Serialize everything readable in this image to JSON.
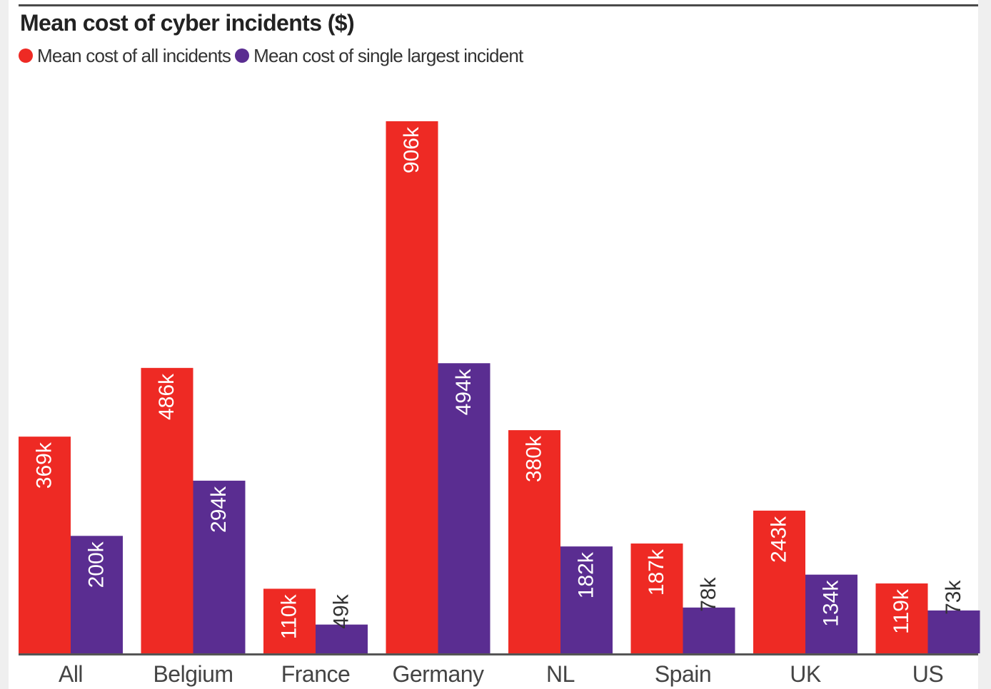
{
  "colors": {
    "all_incidents": "#ee2a24",
    "largest_incident": "#5a2d91",
    "axis": "#555555",
    "text_dark": "#333333"
  },
  "chart_data": {
    "type": "bar",
    "title": "Mean cost of cyber incidents ($)",
    "xlabel": "",
    "ylabel": "",
    "ylim": [
      0,
      906
    ],
    "grid": false,
    "legend_position": "top-left",
    "categories": [
      "All",
      "Belgium",
      "France",
      "Germany",
      "NL",
      "Spain",
      "UK",
      "US"
    ],
    "series": [
      {
        "name": "Mean cost of all incidents",
        "values": [
          369,
          486,
          110,
          906,
          380,
          187,
          243,
          119
        ],
        "labels": [
          "369k",
          "486k",
          "110k",
          "906k",
          "380k",
          "187k",
          "243k",
          "119k"
        ]
      },
      {
        "name": "Mean cost of single largest incident",
        "values": [
          200,
          294,
          49,
          494,
          182,
          78,
          134,
          73
        ],
        "labels": [
          "200k",
          "294k",
          "49k",
          "494k",
          "182k",
          "78k",
          "134k",
          "73k"
        ]
      }
    ]
  }
}
